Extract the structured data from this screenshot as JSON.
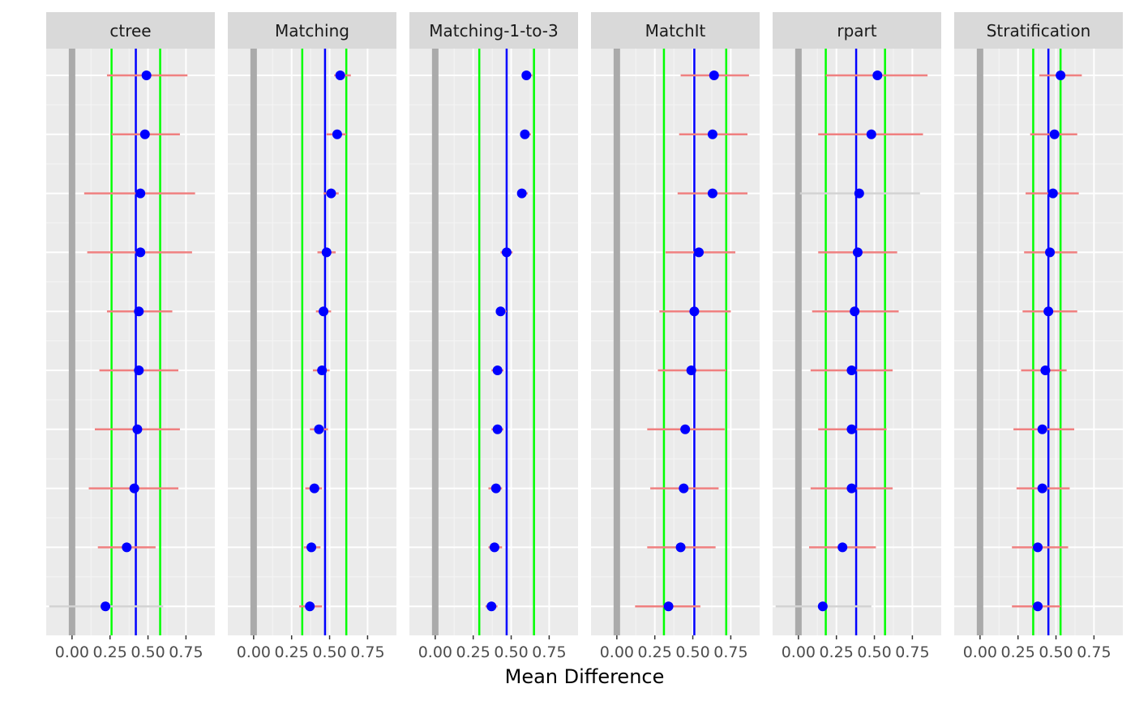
{
  "chart_data": {
    "type": "scatter",
    "description_free": true,
    "xlabel": "Mean Difference",
    "ylabel": "",
    "xlim": [
      -0.17,
      0.94
    ],
    "x_ticks": [
      0,
      0.25,
      0.5,
      0.75
    ],
    "x_tick_labels": [
      "0.00",
      "0.25",
      "0.50",
      "0.75"
    ],
    "grid": true,
    "zero_line": 0,
    "colors": {
      "point": "#0000ff",
      "ci_significant": "#f08080",
      "ci_nonsignificant": "#d3d3d3",
      "mean_line": "#0000ff",
      "bound_lines": "#00ff00",
      "zero_line": "#aaaaaa",
      "panel_bg": "#ebebeb",
      "strip_bg": "#d9d9d9"
    },
    "rows": 10,
    "panels": [
      {
        "name": "ctree",
        "mean_line": 0.42,
        "bound_lines": [
          0.26,
          0.58
        ],
        "points": [
          {
            "x": 0.49,
            "lo": 0.23,
            "hi": 0.76,
            "sig": true
          },
          {
            "x": 0.48,
            "lo": 0.26,
            "hi": 0.71,
            "sig": true
          },
          {
            "x": 0.45,
            "lo": 0.08,
            "hi": 0.81,
            "sig": true
          },
          {
            "x": 0.45,
            "lo": 0.1,
            "hi": 0.79,
            "sig": true
          },
          {
            "x": 0.44,
            "lo": 0.23,
            "hi": 0.66,
            "sig": true
          },
          {
            "x": 0.44,
            "lo": 0.18,
            "hi": 0.7,
            "sig": true
          },
          {
            "x": 0.43,
            "lo": 0.15,
            "hi": 0.71,
            "sig": true
          },
          {
            "x": 0.41,
            "lo": 0.11,
            "hi": 0.7,
            "sig": true
          },
          {
            "x": 0.36,
            "lo": 0.17,
            "hi": 0.55,
            "sig": true
          },
          {
            "x": 0.22,
            "lo": -0.15,
            "hi": 0.6,
            "sig": false
          }
        ]
      },
      {
        "name": "Matching",
        "mean_line": 0.47,
        "bound_lines": [
          0.32,
          0.61
        ],
        "points": [
          {
            "x": 0.57,
            "lo": 0.53,
            "hi": 0.64,
            "sig": true
          },
          {
            "x": 0.55,
            "lo": 0.48,
            "hi": 0.61,
            "sig": true
          },
          {
            "x": 0.51,
            "lo": 0.46,
            "hi": 0.56,
            "sig": true
          },
          {
            "x": 0.48,
            "lo": 0.42,
            "hi": 0.54,
            "sig": true
          },
          {
            "x": 0.46,
            "lo": 0.41,
            "hi": 0.51,
            "sig": true
          },
          {
            "x": 0.45,
            "lo": 0.39,
            "hi": 0.5,
            "sig": true
          },
          {
            "x": 0.43,
            "lo": 0.37,
            "hi": 0.49,
            "sig": true
          },
          {
            "x": 0.4,
            "lo": 0.34,
            "hi": 0.45,
            "sig": true
          },
          {
            "x": 0.38,
            "lo": 0.33,
            "hi": 0.44,
            "sig": true
          },
          {
            "x": 0.37,
            "lo": 0.3,
            "hi": 0.45,
            "sig": true
          }
        ]
      },
      {
        "name": "Matching-1-to-3",
        "mean_line": 0.47,
        "bound_lines": [
          0.29,
          0.65
        ],
        "points": [
          {
            "x": 0.6,
            "lo": 0.58,
            "hi": 0.64,
            "sig": true
          },
          {
            "x": 0.59,
            "lo": 0.57,
            "hi": 0.63,
            "sig": true
          },
          {
            "x": 0.57,
            "lo": 0.55,
            "hi": 0.61,
            "sig": true
          },
          {
            "x": 0.47,
            "lo": 0.43,
            "hi": 0.51,
            "sig": true
          },
          {
            "x": 0.43,
            "lo": 0.4,
            "hi": 0.47,
            "sig": true
          },
          {
            "x": 0.41,
            "lo": 0.37,
            "hi": 0.45,
            "sig": true
          },
          {
            "x": 0.41,
            "lo": 0.37,
            "hi": 0.45,
            "sig": true
          },
          {
            "x": 0.4,
            "lo": 0.35,
            "hi": 0.44,
            "sig": true
          },
          {
            "x": 0.39,
            "lo": 0.35,
            "hi": 0.44,
            "sig": true
          },
          {
            "x": 0.37,
            "lo": 0.33,
            "hi": 0.41,
            "sig": true
          }
        ]
      },
      {
        "name": "MatchIt",
        "mean_line": 0.51,
        "bound_lines": [
          0.31,
          0.72
        ],
        "points": [
          {
            "x": 0.64,
            "lo": 0.42,
            "hi": 0.87,
            "sig": true
          },
          {
            "x": 0.63,
            "lo": 0.41,
            "hi": 0.86,
            "sig": true
          },
          {
            "x": 0.63,
            "lo": 0.4,
            "hi": 0.86,
            "sig": true
          },
          {
            "x": 0.54,
            "lo": 0.32,
            "hi": 0.78,
            "sig": true
          },
          {
            "x": 0.51,
            "lo": 0.28,
            "hi": 0.75,
            "sig": true
          },
          {
            "x": 0.49,
            "lo": 0.27,
            "hi": 0.72,
            "sig": true
          },
          {
            "x": 0.45,
            "lo": 0.2,
            "hi": 0.71,
            "sig": true
          },
          {
            "x": 0.44,
            "lo": 0.22,
            "hi": 0.67,
            "sig": true
          },
          {
            "x": 0.42,
            "lo": 0.2,
            "hi": 0.65,
            "sig": true
          },
          {
            "x": 0.34,
            "lo": 0.12,
            "hi": 0.55,
            "sig": true
          }
        ]
      },
      {
        "name": "rpart",
        "mean_line": 0.38,
        "bound_lines": [
          0.18,
          0.57
        ],
        "points": [
          {
            "x": 0.52,
            "lo": 0.18,
            "hi": 0.85,
            "sig": true
          },
          {
            "x": 0.48,
            "lo": 0.13,
            "hi": 0.82,
            "sig": true
          },
          {
            "x": 0.4,
            "lo": 0.01,
            "hi": 0.8,
            "sig": false
          },
          {
            "x": 0.39,
            "lo": 0.13,
            "hi": 0.65,
            "sig": true
          },
          {
            "x": 0.37,
            "lo": 0.09,
            "hi": 0.66,
            "sig": true
          },
          {
            "x": 0.35,
            "lo": 0.08,
            "hi": 0.62,
            "sig": true
          },
          {
            "x": 0.35,
            "lo": 0.13,
            "hi": 0.58,
            "sig": true
          },
          {
            "x": 0.35,
            "lo": 0.08,
            "hi": 0.62,
            "sig": true
          },
          {
            "x": 0.29,
            "lo": 0.07,
            "hi": 0.51,
            "sig": true
          },
          {
            "x": 0.16,
            "lo": -0.15,
            "hi": 0.48,
            "sig": false
          }
        ]
      },
      {
        "name": "Stratification",
        "mean_line": 0.45,
        "bound_lines": [
          0.35,
          0.53
        ],
        "points": [
          {
            "x": 0.53,
            "lo": 0.39,
            "hi": 0.67,
            "sig": true
          },
          {
            "x": 0.49,
            "lo": 0.33,
            "hi": 0.64,
            "sig": true
          },
          {
            "x": 0.48,
            "lo": 0.3,
            "hi": 0.65,
            "sig": true
          },
          {
            "x": 0.46,
            "lo": 0.29,
            "hi": 0.64,
            "sig": true
          },
          {
            "x": 0.45,
            "lo": 0.28,
            "hi": 0.64,
            "sig": true
          },
          {
            "x": 0.43,
            "lo": 0.27,
            "hi": 0.57,
            "sig": true
          },
          {
            "x": 0.41,
            "lo": 0.22,
            "hi": 0.62,
            "sig": true
          },
          {
            "x": 0.41,
            "lo": 0.24,
            "hi": 0.59,
            "sig": true
          },
          {
            "x": 0.38,
            "lo": 0.21,
            "hi": 0.58,
            "sig": true
          },
          {
            "x": 0.38,
            "lo": 0.21,
            "hi": 0.53,
            "sig": true
          }
        ]
      }
    ]
  }
}
